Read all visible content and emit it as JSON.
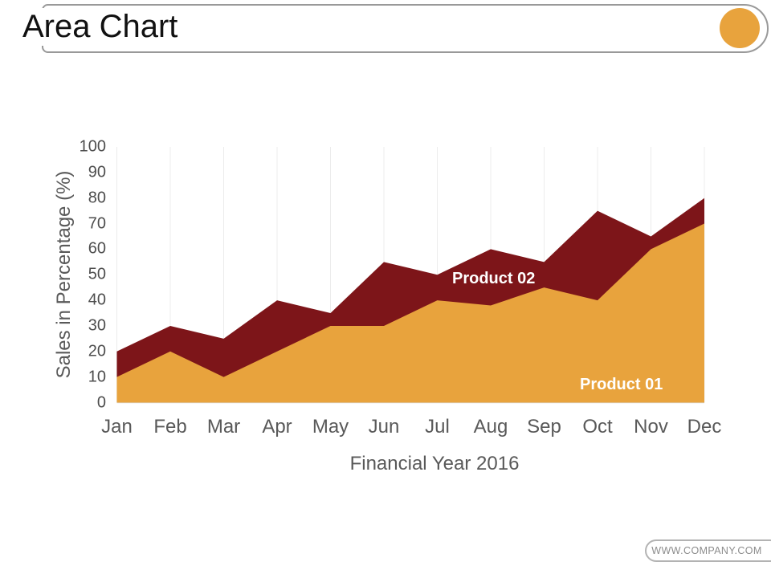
{
  "header": {
    "title": "Area Chart"
  },
  "footer": {
    "website": "WWW.COMPANY.COM"
  },
  "colors": {
    "product01": "#E8A33D",
    "product02": "#7D1519",
    "accent_circle": "#E8A33D",
    "gridline": "#ECECEC",
    "baseline": "#D9D9D9",
    "axis_text": "#595959"
  },
  "chart_data": {
    "type": "area",
    "overlap": true,
    "title": "",
    "xlabel": "Financial Year 2016",
    "ylabel": "Sales in Percentage (%)",
    "ylim": [
      0,
      100
    ],
    "yticks": [
      0,
      10,
      20,
      30,
      40,
      50,
      60,
      70,
      80,
      90,
      100
    ],
    "grid": "vertical-only",
    "legend": "inline-labels",
    "categories": [
      "Jan",
      "Feb",
      "Mar",
      "Apr",
      "May",
      "Jun",
      "Jul",
      "Aug",
      "Sep",
      "Oct",
      "Nov",
      "Dec"
    ],
    "series": [
      {
        "name": "Product 01",
        "color": "#E8A33D",
        "values": [
          10,
          20,
          10,
          20,
          30,
          30,
          40,
          38,
          45,
          40,
          60,
          70
        ]
      },
      {
        "name": "Product 02",
        "color": "#7D1519",
        "values": [
          20,
          30,
          25,
          40,
          35,
          55,
          50,
          60,
          55,
          75,
          65,
          80
        ]
      }
    ]
  }
}
